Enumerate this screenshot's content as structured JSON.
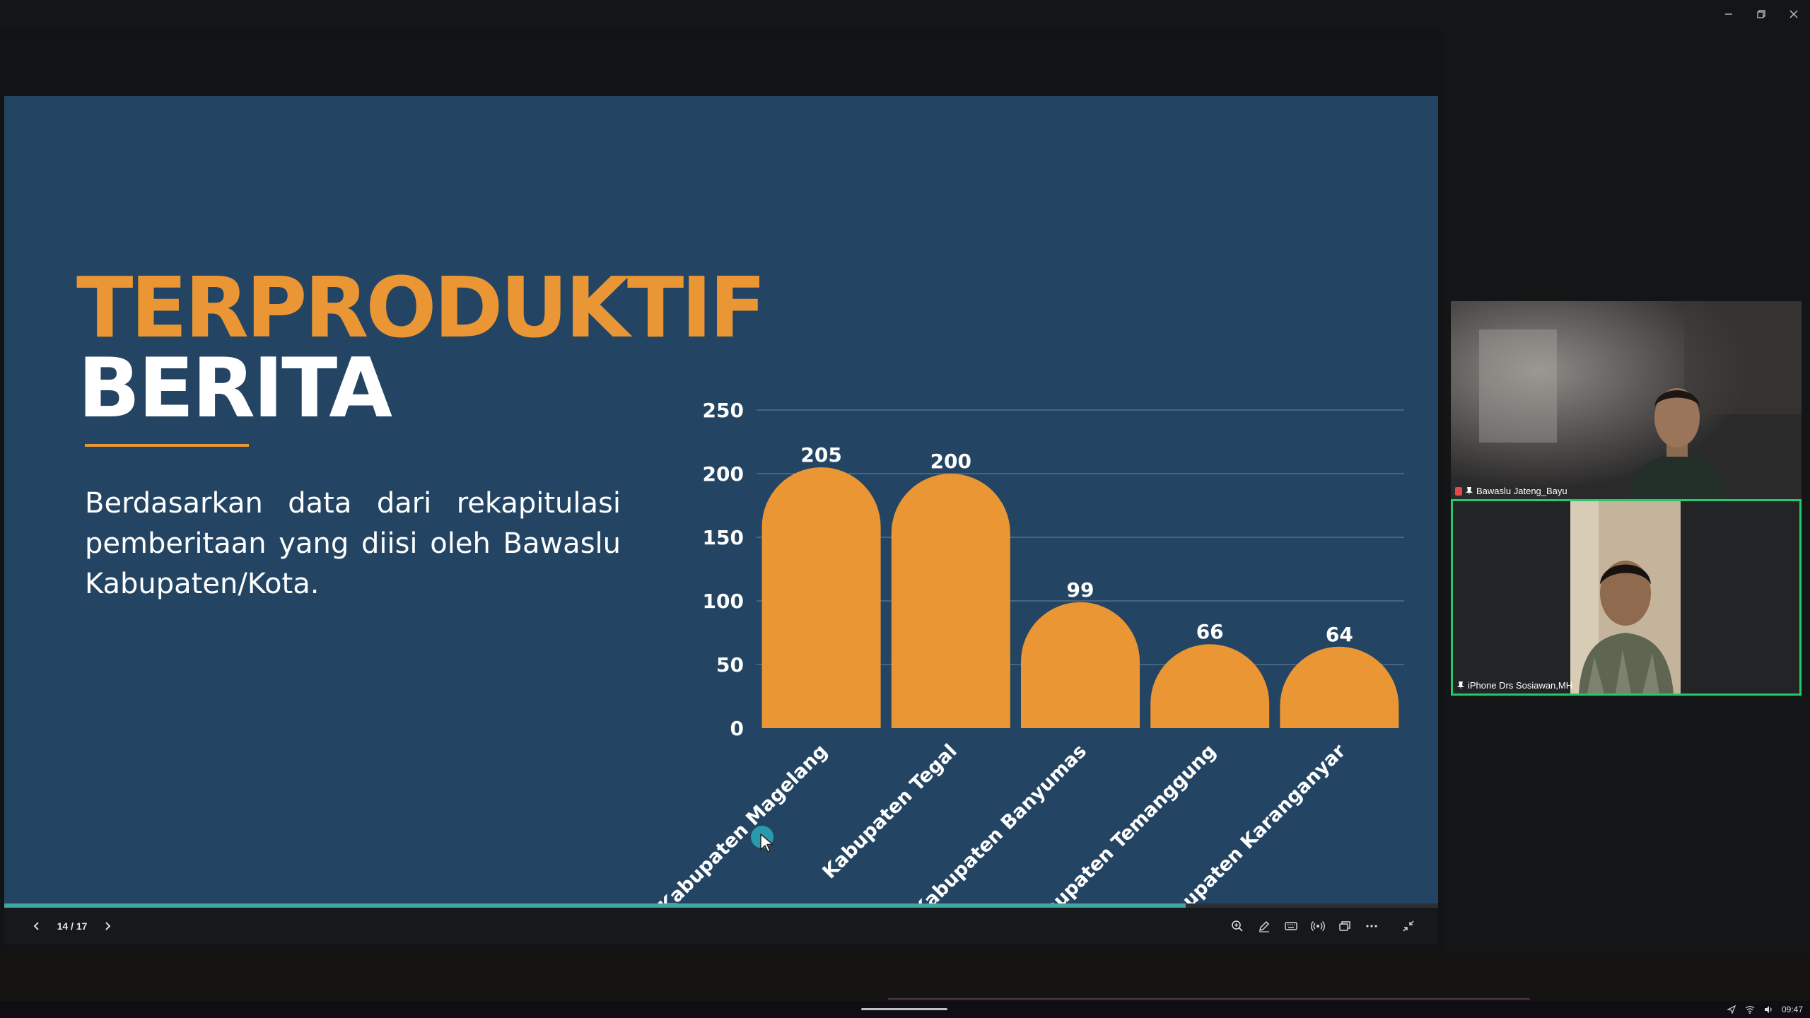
{
  "slide": {
    "title_line1": "TERPRODUKTIF",
    "title_line2": "BERITA",
    "description": "Berdasarkan data dari rekapitulasi pemberitaan yang diisi oleh Bawaslu Kabupaten/Kota."
  },
  "chart_data": {
    "type": "bar",
    "categories": [
      "Kabupaten Magelang",
      "Kabupaten Tegal",
      "Kabupaten Banyumas",
      "Kabupaten Temanggung",
      "Kabupaten Karanganyar"
    ],
    "values": [
      205,
      200,
      99,
      66,
      64
    ],
    "ylim": [
      0,
      250
    ],
    "yticks": [
      0,
      50,
      100,
      150,
      200,
      250
    ],
    "grid": true,
    "data_labels": true,
    "bar_color": "#ea9634"
  },
  "presentation": {
    "page_indicator": "14 / 17",
    "progress": 0.824
  },
  "participants": [
    {
      "name": "Bawaslu Jateng_Bayu"
    },
    {
      "name": "iPhone Drs Sosiawan,MH"
    }
  ],
  "colors": {
    "slide_bg": "#234563",
    "accent": "#ea9634",
    "active_speaker": "#23c96a",
    "progress": "#3fa6a0"
  },
  "icons": {
    "toolbar": [
      "zoom-in-icon",
      "pen-icon",
      "keyboard-icon",
      "broadcast-icon",
      "layout-icon",
      "more-icon",
      "exit-fullscreen-icon"
    ],
    "window": [
      "minimize-icon",
      "restore-icon",
      "close-icon"
    ]
  },
  "taskbar": {
    "time": "09:47"
  }
}
